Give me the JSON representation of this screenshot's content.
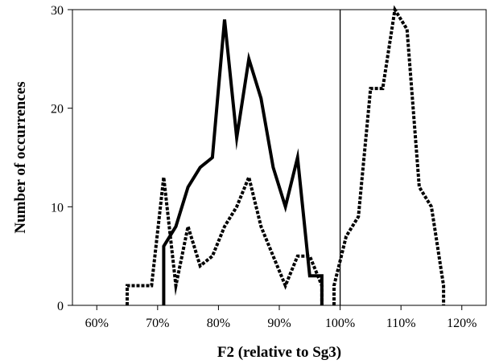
{
  "chart_data": {
    "type": "line",
    "title": "",
    "xlabel": "F2 (relative to Sg3)",
    "ylabel": "Number of occurrences",
    "xlim": [
      56,
      124
    ],
    "ylim": [
      0,
      30
    ],
    "x_ticks": [
      60,
      70,
      80,
      90,
      100,
      110,
      120
    ],
    "x_tick_labels": [
      "60%",
      "70%",
      "80%",
      "90%",
      "100%",
      "110%",
      "120%"
    ],
    "y_ticks": [
      0,
      10,
      20,
      30
    ],
    "y_tick_labels": [
      "0",
      "10",
      "20",
      "30"
    ],
    "reference_line_x": 100,
    "grid": false,
    "legend": "none",
    "series": [
      {
        "style": "solid",
        "color": "#000000",
        "points": [
          [
            71,
            0
          ],
          [
            71,
            6
          ],
          [
            73,
            8
          ],
          [
            75,
            12
          ],
          [
            77,
            14
          ],
          [
            79,
            15
          ],
          [
            81,
            29
          ],
          [
            83,
            17
          ],
          [
            85,
            25
          ],
          [
            87,
            21
          ],
          [
            89,
            14
          ],
          [
            91,
            10
          ],
          [
            93,
            15
          ],
          [
            95,
            3
          ],
          [
            97,
            3
          ],
          [
            97,
            0
          ]
        ]
      },
      {
        "style": "dotted",
        "color": "#000000",
        "points": [
          [
            65,
            0
          ],
          [
            65,
            2
          ],
          [
            69,
            2
          ],
          [
            71,
            13
          ],
          [
            73,
            2
          ],
          [
            75,
            8
          ],
          [
            77,
            4
          ],
          [
            79,
            5
          ],
          [
            81,
            8
          ],
          [
            83,
            10
          ],
          [
            85,
            13
          ],
          [
            87,
            8
          ],
          [
            89,
            5
          ],
          [
            91,
            2
          ],
          [
            93,
            5
          ],
          [
            95,
            5
          ],
          [
            97,
            2
          ],
          [
            97,
            0
          ]
        ]
      },
      {
        "style": "dotted",
        "color": "#000000",
        "points": [
          [
            99,
            0
          ],
          [
            99,
            2
          ],
          [
            101,
            7
          ],
          [
            103,
            9
          ],
          [
            105,
            22
          ],
          [
            107,
            22
          ],
          [
            109,
            30
          ],
          [
            111,
            28
          ],
          [
            113,
            12
          ],
          [
            115,
            10
          ],
          [
            117,
            2
          ],
          [
            117,
            0
          ]
        ]
      }
    ]
  }
}
